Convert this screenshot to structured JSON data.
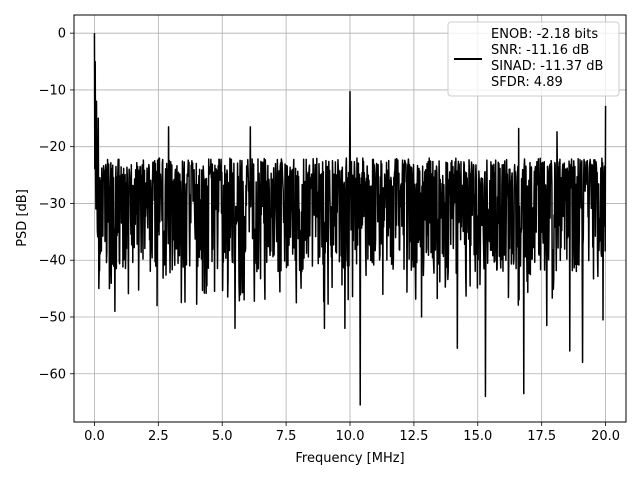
{
  "chart_data": {
    "type": "line",
    "xlabel": "Frequency [MHz]",
    "ylabel": "PSD [dB]",
    "xlim": [
      -0.8,
      20.8
    ],
    "ylim": [
      -68.5,
      3.2
    ],
    "xticks": [
      0.0,
      2.5,
      5.0,
      7.5,
      10.0,
      12.5,
      15.0,
      17.5,
      20.0
    ],
    "xtick_labels": [
      "0.0",
      "2.5",
      "5.0",
      "7.5",
      "10.0",
      "12.5",
      "15.0",
      "17.5",
      "20.0"
    ],
    "yticks": [
      0,
      -10,
      -20,
      -30,
      -40,
      -50,
      -60
    ],
    "ytick_labels": [
      "0",
      "−10",
      "−20",
      "−30",
      "−40",
      "−50",
      "−60"
    ],
    "grid": true,
    "legend_position": "upper-right",
    "series": [
      {
        "color": "#000000",
        "noise_floor_center": -30,
        "noise_band": [
          -38,
          -22
        ],
        "x_range": [
          0.0,
          20.0
        ],
        "peaks": [
          {
            "x": 0.0,
            "y": 0.0
          },
          {
            "x": 0.03,
            "y": -5
          },
          {
            "x": 0.08,
            "y": -12
          },
          {
            "x": 0.15,
            "y": -15
          },
          {
            "x": 10.0,
            "y": -10.3
          },
          {
            "x": 20.0,
            "y": -12.8
          },
          {
            "x": 2.9,
            "y": -16.5
          },
          {
            "x": 6.1,
            "y": -16.5
          },
          {
            "x": 16.6,
            "y": -16.8
          },
          {
            "x": 18.1,
            "y": -17.4
          }
        ],
        "dips": [
          {
            "x": 10.4,
            "y": -65.5
          },
          {
            "x": 15.3,
            "y": -64.0
          },
          {
            "x": 16.8,
            "y": -63.5
          },
          {
            "x": 19.1,
            "y": -58.0
          },
          {
            "x": 18.6,
            "y": -56.0
          },
          {
            "x": 14.2,
            "y": -55.5
          },
          {
            "x": 5.5,
            "y": -52.0
          },
          {
            "x": 9.0,
            "y": -52.0
          },
          {
            "x": 9.8,
            "y": -52.0
          },
          {
            "x": 0.8,
            "y": -49.0
          },
          {
            "x": 2.45,
            "y": -48.0
          },
          {
            "x": 17.7,
            "y": -51.5
          },
          {
            "x": 19.9,
            "y": -50.5
          },
          {
            "x": 12.8,
            "y": -50.0
          },
          {
            "x": 7.9,
            "y": -47.5
          }
        ]
      }
    ],
    "legend": {
      "lines": [
        "ENOB: -2.18 bits",
        "SNR: -11.16 dB",
        "SINAD: -11.37 dB",
        "SFDR: 4.89"
      ]
    }
  }
}
